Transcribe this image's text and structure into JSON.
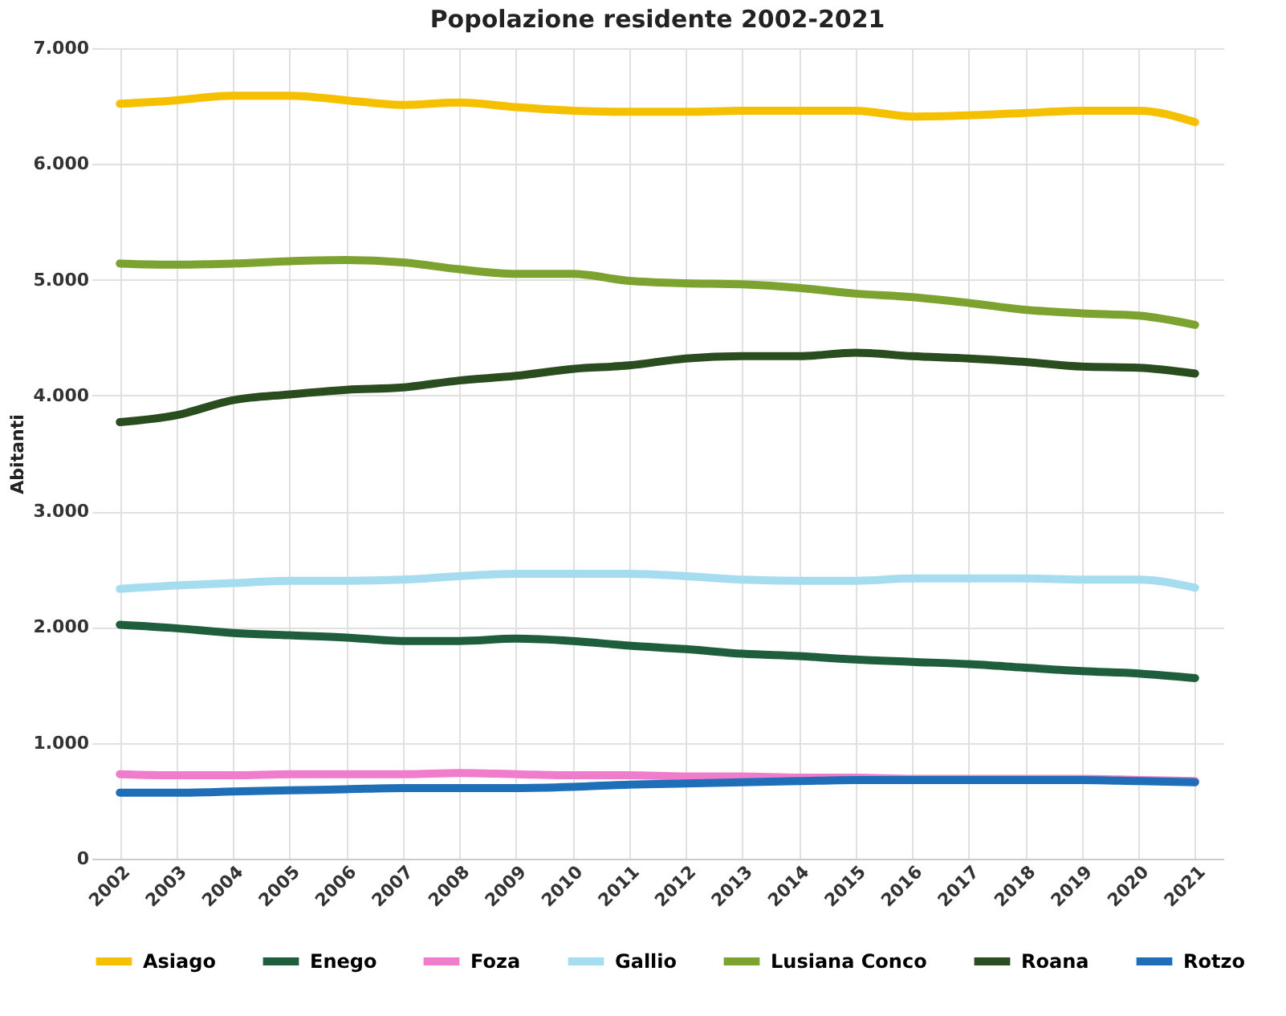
{
  "chart_data": {
    "type": "line",
    "title": "Popolazione residente 2002-2021",
    "ylabel": "Abitanti",
    "categories": [
      "2002",
      "2003",
      "2004",
      "2005",
      "2006",
      "2007",
      "2008",
      "2009",
      "2010",
      "2011",
      "2012",
      "2013",
      "2014",
      "2015",
      "2016",
      "2017",
      "2018",
      "2019",
      "2020",
      "2021"
    ],
    "series": [
      {
        "name": "Asiago",
        "color": "#f5c000",
        "values": [
          6520,
          6550,
          6590,
          6590,
          6550,
          6510,
          6530,
          6490,
          6460,
          6450,
          6450,
          6460,
          6460,
          6460,
          6410,
          6420,
          6440,
          6460,
          6460,
          6360
        ]
      },
      {
        "name": "Enego",
        "color": "#1e5e3c",
        "values": [
          2020,
          1990,
          1950,
          1930,
          1910,
          1880,
          1880,
          1900,
          1880,
          1840,
          1810,
          1770,
          1750,
          1720,
          1700,
          1680,
          1650,
          1620,
          1600,
          1560
        ]
      },
      {
        "name": "Foza",
        "color": "#f07ccc",
        "values": [
          730,
          720,
          720,
          730,
          730,
          730,
          740,
          730,
          720,
          720,
          710,
          710,
          700,
          700,
          690,
          690,
          690,
          690,
          680,
          670
        ]
      },
      {
        "name": "Gallio",
        "color": "#a6dcf0",
        "values": [
          2330,
          2360,
          2380,
          2400,
          2400,
          2410,
          2440,
          2460,
          2460,
          2460,
          2440,
          2410,
          2400,
          2400,
          2420,
          2420,
          2420,
          2410,
          2410,
          2340
        ]
      },
      {
        "name": "Lusiana Conco",
        "color": "#7ca32f",
        "values": [
          5140,
          5130,
          5140,
          5160,
          5170,
          5150,
          5090,
          5050,
          5050,
          4990,
          4970,
          4960,
          4930,
          4880,
          4850,
          4800,
          4740,
          4710,
          4690,
          4610
        ]
      },
      {
        "name": "Roana",
        "color": "#294d1e",
        "values": [
          3770,
          3830,
          3960,
          4010,
          4050,
          4070,
          4130,
          4170,
          4230,
          4260,
          4320,
          4340,
          4340,
          4370,
          4340,
          4320,
          4290,
          4250,
          4240,
          4190
        ]
      },
      {
        "name": "Rotzo",
        "color": "#1f6fb8",
        "values": [
          570,
          570,
          580,
          590,
          600,
          610,
          610,
          610,
          620,
          640,
          650,
          660,
          670,
          680,
          680,
          680,
          680,
          680,
          670,
          660
        ]
      }
    ],
    "ylim": [
      0,
      7000
    ],
    "yticks": [
      {
        "value": 0,
        "label": "0"
      },
      {
        "value": 1000,
        "label": "1.000"
      },
      {
        "value": 2000,
        "label": "2.000"
      },
      {
        "value": 3000,
        "label": "3.000"
      },
      {
        "value": 4000,
        "label": "4.000"
      },
      {
        "value": 5000,
        "label": "5.000"
      },
      {
        "value": 6000,
        "label": "6.000"
      },
      {
        "value": 7000,
        "label": "7.000"
      }
    ],
    "grid": true,
    "legend": "bottom"
  }
}
